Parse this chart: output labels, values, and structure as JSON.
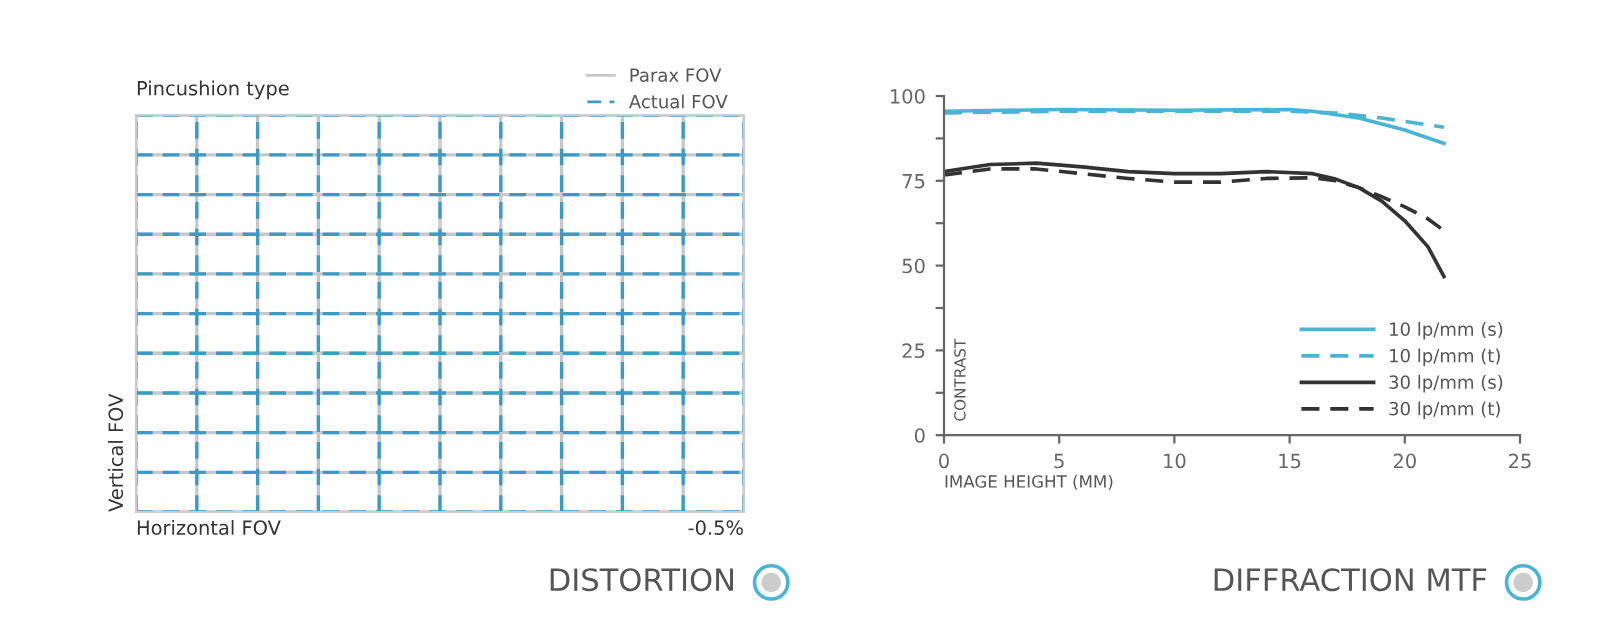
{
  "chart_data": [
    {
      "type": "other",
      "title": "Pincushion type",
      "xlabel": "Horizontal FOV",
      "ylabel": "Vertical FOV",
      "annotations": [
        "-0.5%",
        "DISTORTION"
      ],
      "legend": "top right",
      "series": [
        {
          "name": "Parax FOV",
          "color": "#c8c8c8",
          "line_style": "solid"
        },
        {
          "name": "Actual FOV",
          "color": "#3a9cc6",
          "line_style": "dashed"
        }
      ]
    },
    {
      "type": "line",
      "xlabel": "IMAGE HEIGHT (MM)",
      "ylabel": "CONTRAST",
      "annotations": [
        "DIFFRACTION MTF"
      ],
      "xlim": [
        0,
        25
      ],
      "ylim": [
        0,
        100
      ],
      "xticks": [
        0,
        5,
        10,
        15,
        20,
        25
      ],
      "yticks": [
        0,
        {
          "value": 12.5,
          "label": null
        },
        25,
        {
          "value": 37.5,
          "label": null
        },
        50,
        {
          "value": 62.5,
          "label": null
        },
        75,
        {
          "value": 87.5,
          "label": null
        },
        100
      ],
      "legend": "bottom right",
      "marker": "none",
      "series": [
        {
          "name": "10 lp/mm (s)",
          "color": "#4ab4d6",
          "line_style": "solid",
          "x": [
            0,
            5,
            10,
            15,
            16,
            18,
            20,
            21.7
          ],
          "values": [
            95.5,
            96,
            95.8,
            96,
            95.5,
            93.5,
            90,
            86
          ]
        },
        {
          "name": "10 lp/mm (t)",
          "color": "#4ab4d6",
          "line_style": "dashed",
          "x": [
            0,
            5,
            10,
            15,
            17,
            19,
            20,
            21.7
          ],
          "values": [
            95,
            95.5,
            95.5,
            95.5,
            95,
            93.5,
            92.5,
            90.8
          ]
        },
        {
          "name": "30 lp/mm (s)",
          "color": "#333333",
          "line_style": "solid",
          "x": [
            0,
            2,
            4,
            6,
            8,
            10,
            12,
            14,
            16,
            17,
            18,
            19,
            20,
            21,
            21.7
          ],
          "values": [
            77.7,
            79.8,
            80.2,
            79.1,
            77.7,
            77.1,
            77.1,
            77.7,
            77.1,
            75.5,
            73,
            69,
            63.2,
            55.6,
            46.8
          ]
        },
        {
          "name": "30 lp/mm (t)",
          "color": "#333333",
          "line_style": "dashed",
          "x": [
            0,
            2,
            4,
            6,
            8,
            10,
            12,
            14,
            16,
            17,
            18,
            19,
            20,
            21,
            21.7
          ],
          "values": [
            76.7,
            78.5,
            78.5,
            77.1,
            75.7,
            74.6,
            74.6,
            75.7,
            75.9,
            75,
            73,
            70.3,
            67.3,
            63.8,
            60.3
          ]
        }
      ]
    }
  ]
}
